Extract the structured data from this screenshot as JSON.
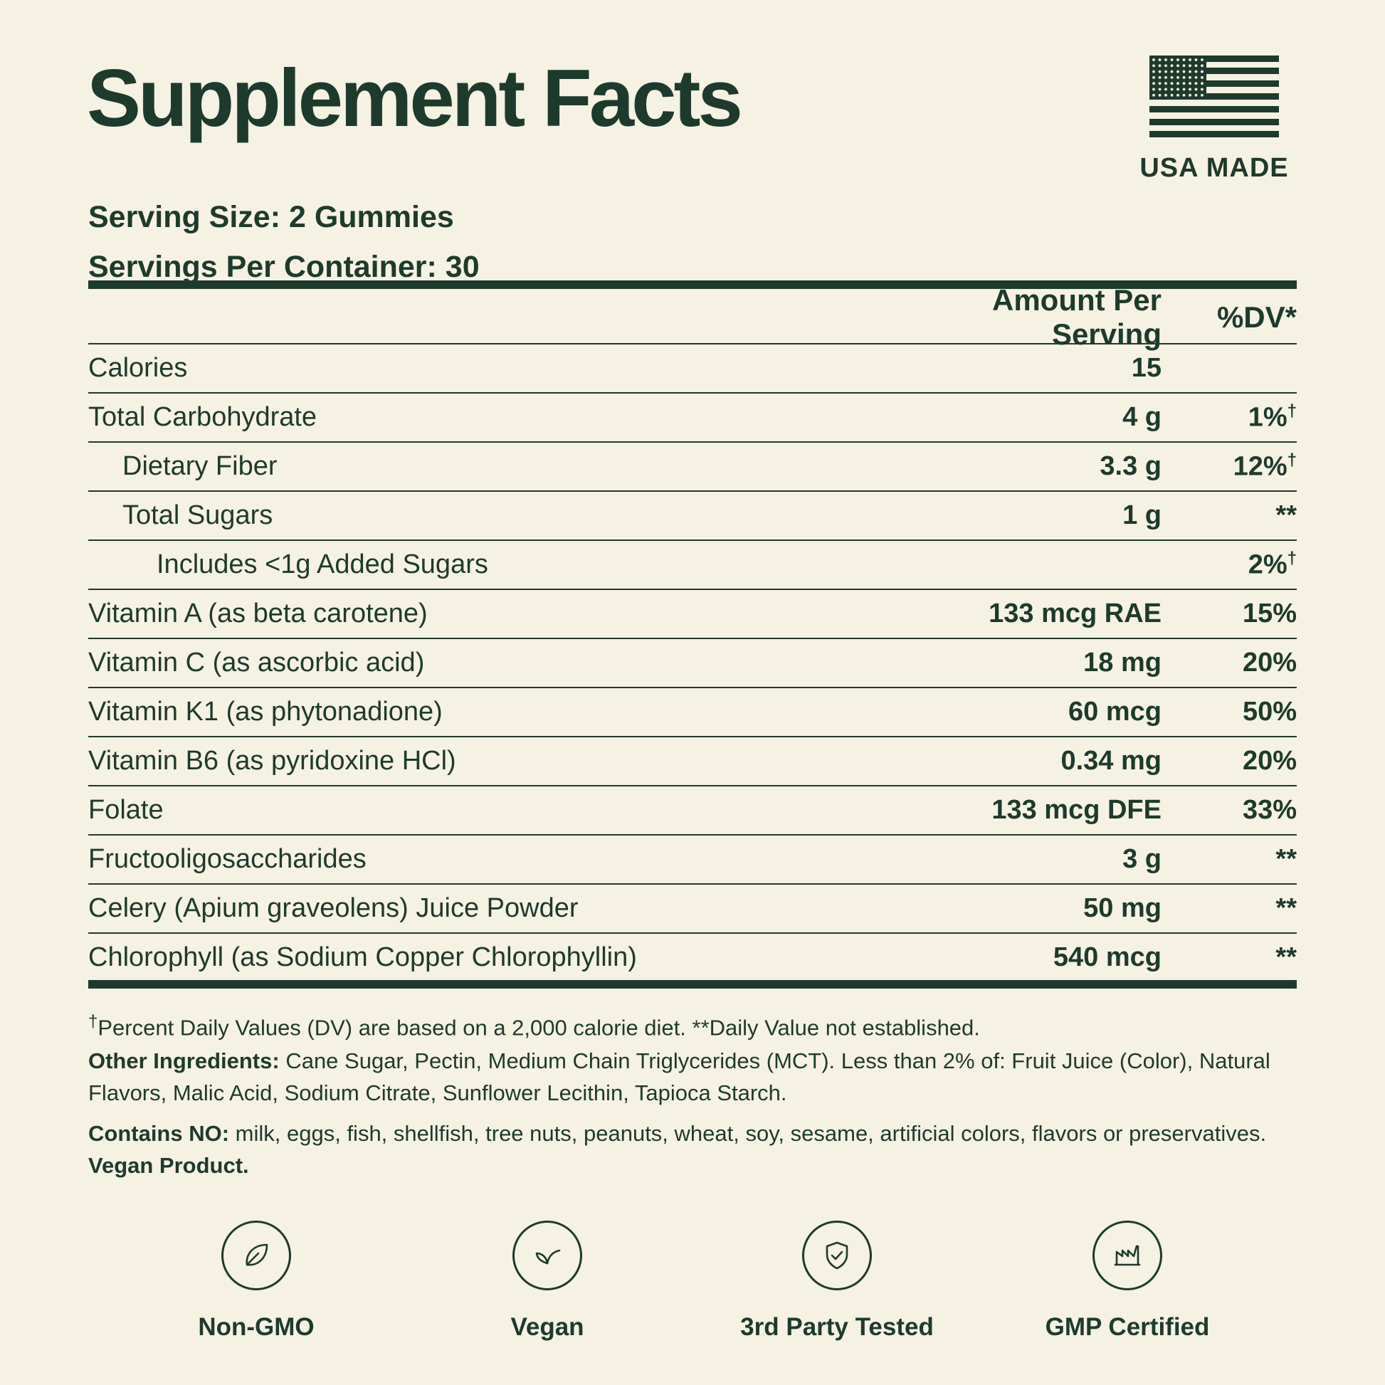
{
  "title": "Supplement Facts",
  "badge_top": {
    "label": "USA MADE",
    "icon": "usa-flag-icon"
  },
  "serving": {
    "size": "Serving Size: 2 Gummies",
    "per_container": "Servings Per Container: 30"
  },
  "table": {
    "header_amount": "Amount Per Serving",
    "header_dv": "%DV*",
    "rows": [
      {
        "name": "Calories",
        "amount": "15",
        "dv": ""
      },
      {
        "name": "Total Carbohydrate",
        "amount": "4 g",
        "dv": "1%",
        "dv_mark": "†"
      },
      {
        "name": "Dietary Fiber",
        "amount": "3.3 g",
        "dv": "12%",
        "dv_mark": "†"
      },
      {
        "name": "Total Sugars",
        "amount": "1 g",
        "dv": "**"
      },
      {
        "name": "Includes <1g Added Sugars",
        "amount": "",
        "dv": "2%",
        "dv_mark": "†"
      },
      {
        "name": "Vitamin A (as beta carotene)",
        "amount": "133 mcg RAE",
        "dv": "15%"
      },
      {
        "name": "Vitamin C (as ascorbic acid)",
        "amount": "18 mg",
        "dv": "20%"
      },
      {
        "name": "Vitamin K1 (as phytonadione)",
        "amount": "60 mcg",
        "dv": "50%"
      },
      {
        "name": "Vitamin B6 (as pyridoxine HCl)",
        "amount": "0.34 mg",
        "dv": "20%"
      },
      {
        "name": "Folate",
        "amount": "133 mcg DFE",
        "dv": "33%"
      },
      {
        "name": "Fructooligosaccharides",
        "amount": "3 g",
        "dv": "**"
      },
      {
        "name": "Celery (Apium graveolens) Juice Powder",
        "amount": "50 mg",
        "dv": "**"
      },
      {
        "name": "Chlorophyll (as Sodium Copper Chlorophyllin)",
        "amount": "540 mcg",
        "dv": "**"
      }
    ]
  },
  "footnote": {
    "mark": "†",
    "text": "Percent Daily Values (DV) are based on a 2,000 calorie diet. **Daily Value not established."
  },
  "other_ingredients": {
    "label": "Other Ingredients:",
    "text": " Cane Sugar, Pectin, Medium Chain Triglycerides (MCT). Less than 2% of: Fruit Juice (Color), Natural Flavors, Malic Acid, Sodium Citrate, Sunflower Lecithin, Tapioca Starch."
  },
  "contains_no": {
    "label": "Contains NO:",
    "text": " milk, eggs, fish, shellfish, tree nuts, peanuts, wheat, soy, sesame, artificial colors, flavors or preservatives. ",
    "emphasis": "Vegan Product."
  },
  "badges": [
    {
      "label": "Non-GMO",
      "icon": "leaf-icon"
    },
    {
      "label": "Vegan",
      "icon": "sprout-icon"
    },
    {
      "label": "3rd Party Tested",
      "icon": "shield-check-icon"
    },
    {
      "label": "GMP Certified",
      "icon": "factory-icon"
    }
  ],
  "colors": {
    "background": "#f5f1e3",
    "ink": "#1e3a2c"
  }
}
